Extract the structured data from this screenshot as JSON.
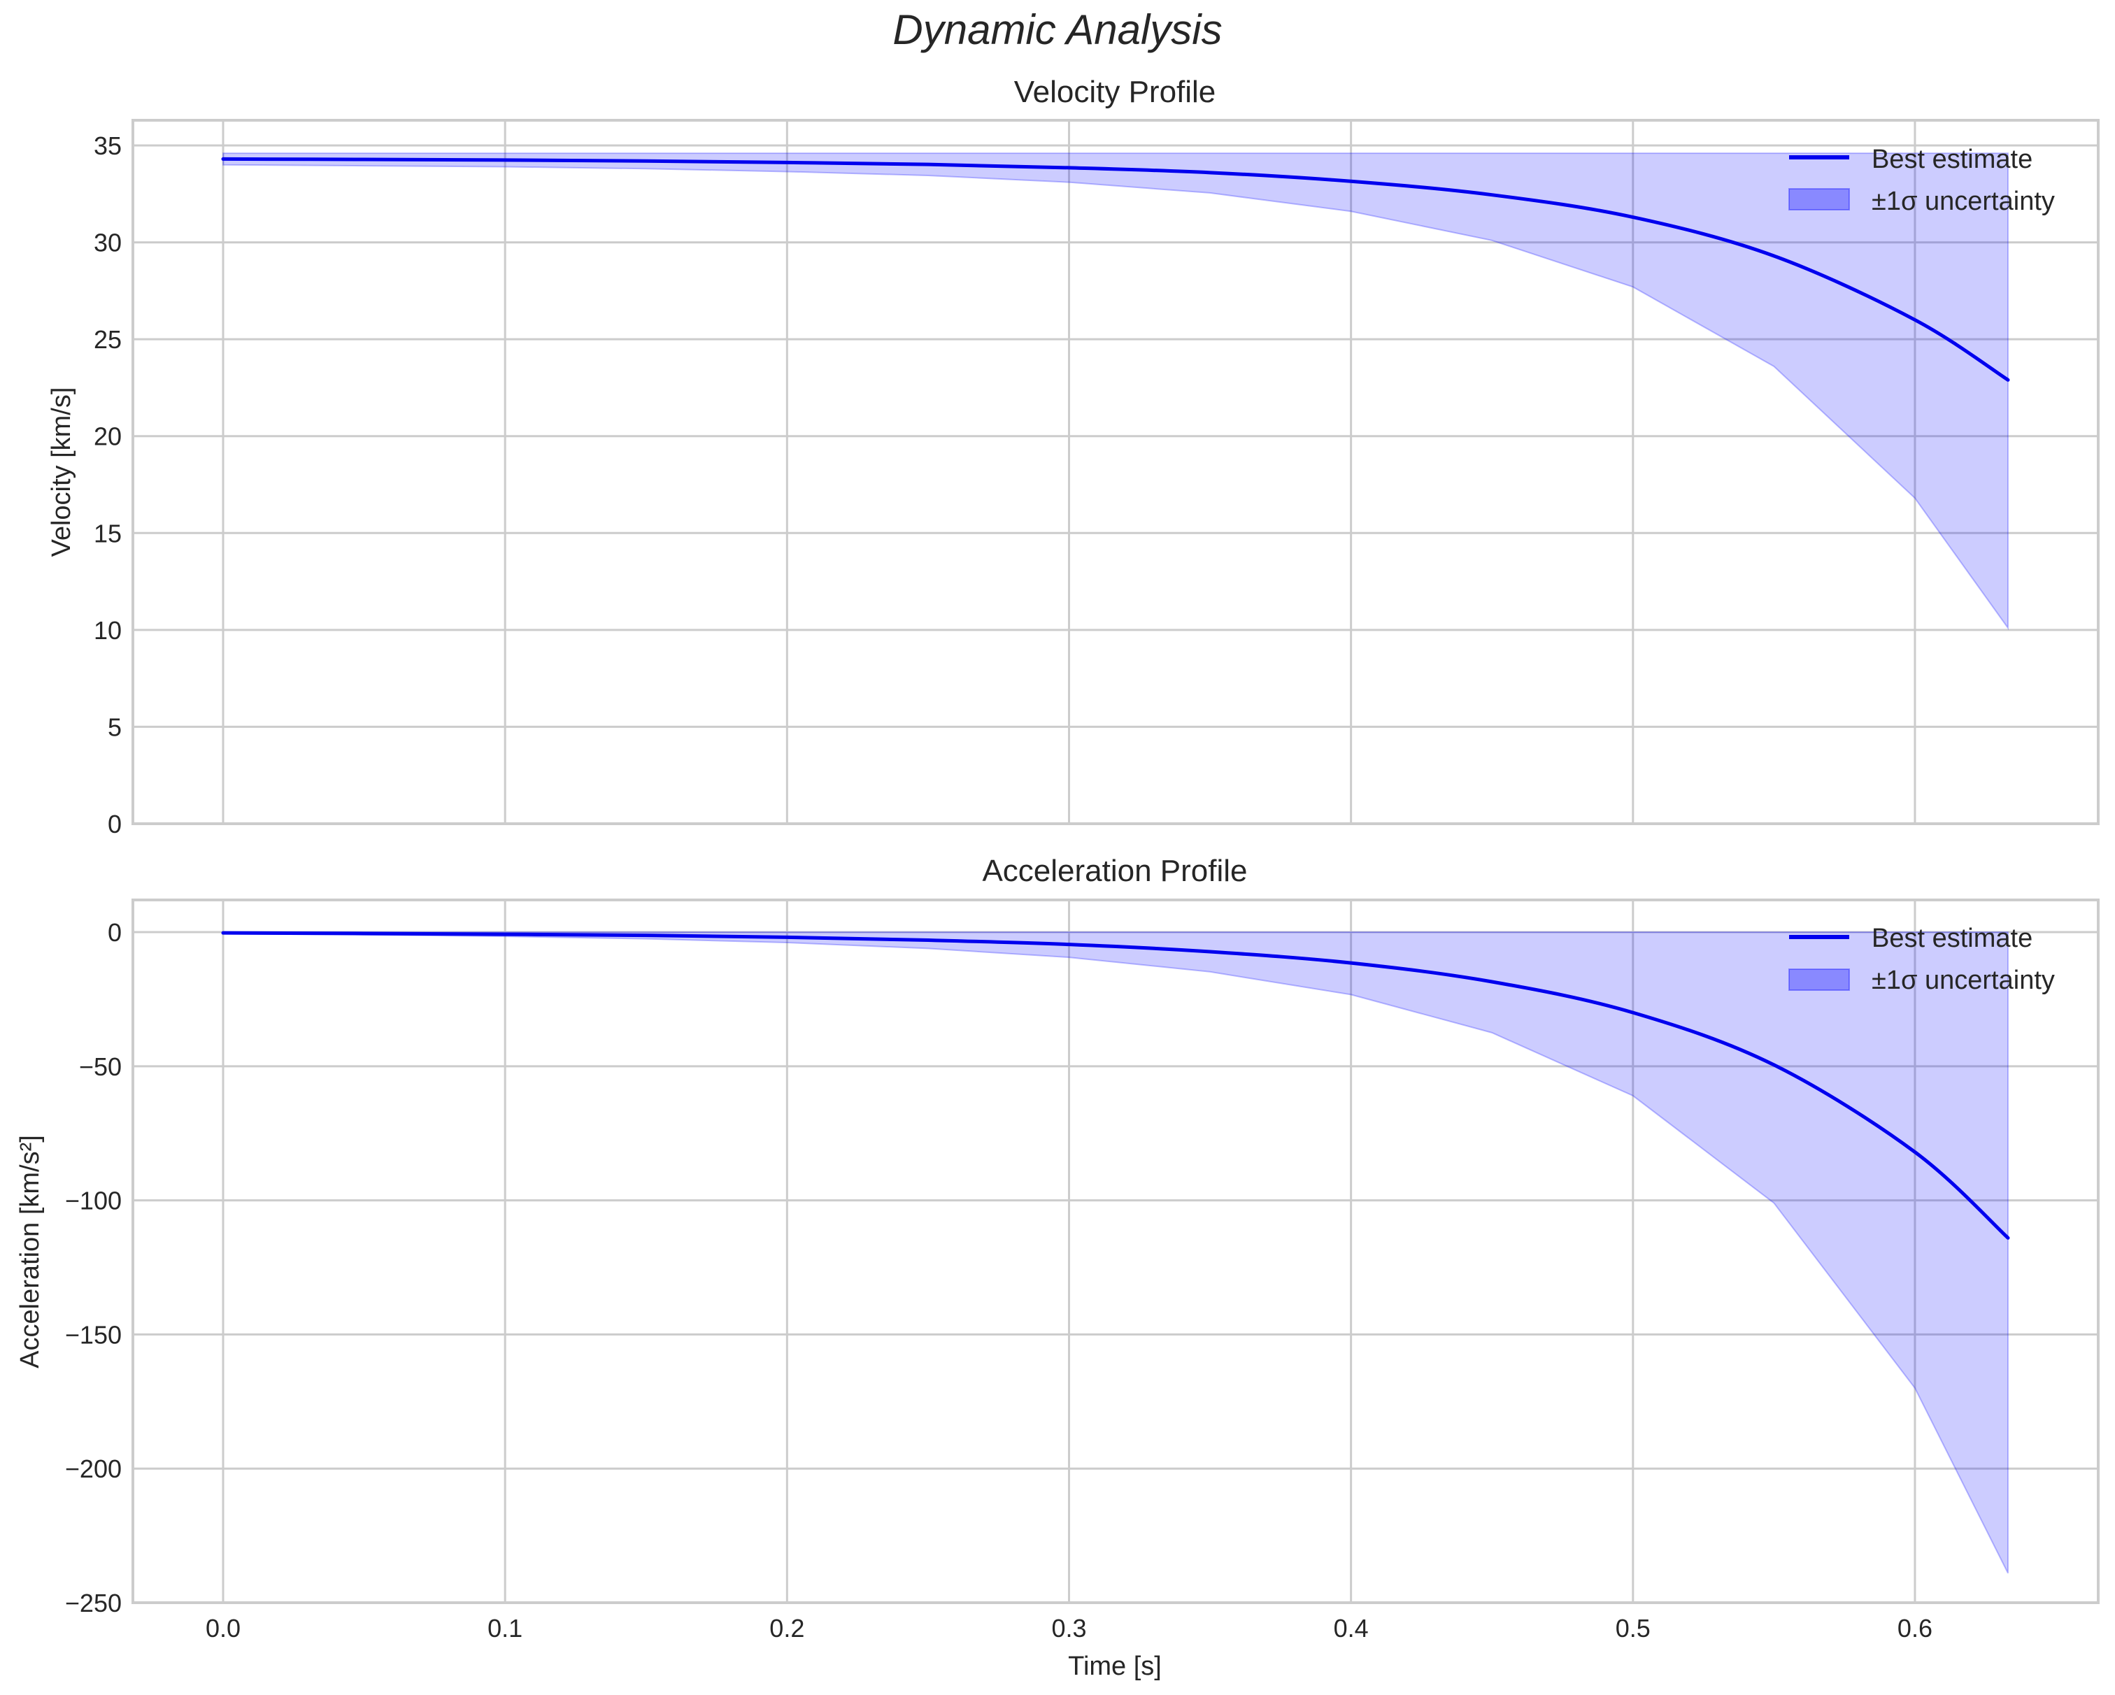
{
  "figure": {
    "suptitle": "Dynamic Analysis",
    "xlabel": "Time [s]",
    "line_color": "#0000ee",
    "band_color": "#0000ff",
    "band_alpha": 0.2
  },
  "chart_data": [
    {
      "type": "line",
      "title": "Velocity Profile",
      "xlabel": "",
      "ylabel": "Velocity [km/s]",
      "xlim": [
        -0.032,
        0.665
      ],
      "ylim": [
        0,
        36.3
      ],
      "xticks": [
        "0.0",
        "0.1",
        "0.2",
        "0.3",
        "0.4",
        "0.5",
        "0.6"
      ],
      "yticks": [
        "0",
        "5",
        "10",
        "15",
        "20",
        "25",
        "30",
        "35"
      ],
      "grid": true,
      "legend": {
        "position": "upper right",
        "entries": [
          "Best estimate",
          "±1σ uncertainty"
        ]
      },
      "x": [
        0.0,
        0.05,
        0.1,
        0.15,
        0.2,
        0.25,
        0.3,
        0.35,
        0.4,
        0.45,
        0.5,
        0.55,
        0.6,
        0.633
      ],
      "series": [
        {
          "name": "Best estimate",
          "values": [
            34.3,
            34.28,
            34.25,
            34.2,
            34.12,
            34.02,
            33.85,
            33.6,
            33.15,
            32.45,
            31.3,
            29.3,
            26.0,
            22.9
          ]
        },
        {
          "name": "±1σ upper",
          "values": [
            34.6,
            34.6,
            34.6,
            34.6,
            34.6,
            34.6,
            34.6,
            34.6,
            34.6,
            34.6,
            34.6,
            34.6,
            34.6,
            34.6
          ]
        },
        {
          "name": "±1σ lower",
          "values": [
            34.0,
            33.95,
            33.9,
            33.8,
            33.65,
            33.45,
            33.1,
            32.55,
            31.6,
            30.1,
            27.7,
            23.6,
            16.8,
            10.1
          ]
        }
      ]
    },
    {
      "type": "line",
      "title": "Acceleration Profile",
      "xlabel": "Time [s]",
      "ylabel": "Acceleration [km/s²]",
      "xlim": [
        -0.032,
        0.665
      ],
      "ylim": [
        -250,
        12
      ],
      "xticks": [
        "0.0",
        "0.1",
        "0.2",
        "0.3",
        "0.4",
        "0.5",
        "0.6"
      ],
      "yticks": [
        "0",
        "−50",
        "−100",
        "−150",
        "−200",
        "−250"
      ],
      "grid": true,
      "legend": {
        "position": "upper right",
        "entries": [
          "Best estimate",
          "±1σ uncertainty"
        ]
      },
      "x": [
        0.0,
        0.05,
        0.1,
        0.15,
        0.2,
        0.25,
        0.3,
        0.35,
        0.4,
        0.45,
        0.5,
        0.55,
        0.6,
        0.633
      ],
      "series": [
        {
          "name": "Best estimate",
          "values": [
            -0.3,
            -0.5,
            -0.8,
            -1.2,
            -1.9,
            -3.0,
            -4.6,
            -7.3,
            -11.5,
            -18.5,
            -30.0,
            -49.5,
            -82.0,
            -114.0
          ]
        },
        {
          "name": "±1σ upper",
          "values": [
            0,
            0,
            0,
            0,
            0,
            0,
            0,
            0,
            0,
            0,
            0,
            0,
            0,
            0
          ]
        },
        {
          "name": "±1σ lower",
          "values": [
            -0.6,
            -1.0,
            -1.6,
            -2.5,
            -3.9,
            -6.1,
            -9.4,
            -14.8,
            -23.3,
            -37.5,
            -61.0,
            -101.0,
            -170.0,
            -239.0
          ]
        }
      ]
    }
  ]
}
